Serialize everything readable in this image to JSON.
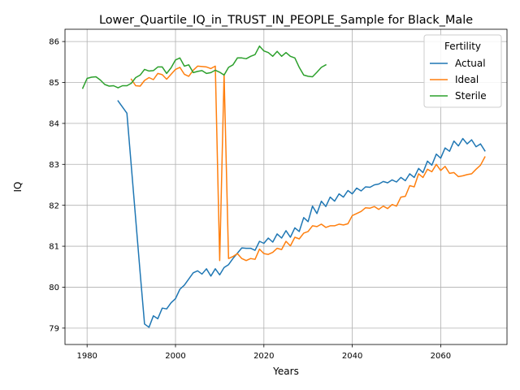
{
  "chart_data": {
    "type": "line",
    "title": "Lower_Quartile_IQ_in_TRUST_IN_PEOPLE_Sample for Black_Male",
    "xlabel": "Years",
    "ylabel": "IQ",
    "xlim": [
      1975,
      2075
    ],
    "ylim": [
      78.6,
      86.3
    ],
    "xticks": [
      1980,
      2000,
      2020,
      2040,
      2060
    ],
    "yticks": [
      79,
      80,
      81,
      82,
      83,
      84,
      85,
      86
    ],
    "grid": true,
    "legend": {
      "title": "Fertility",
      "placement": "top-right"
    },
    "series": [
      {
        "name": "Actual",
        "color": "#1f77b4",
        "x": [
          1987,
          1989,
          1992,
          1993,
          1994,
          1995,
          1996,
          1997,
          1998,
          1999,
          2000,
          2001,
          2002,
          2003,
          2004,
          2005,
          2006,
          2007,
          2008,
          2009,
          2010,
          2011,
          2012,
          2013,
          2014,
          2015,
          2016,
          2017,
          2018,
          2019,
          2020,
          2021,
          2022,
          2023,
          2024,
          2025,
          2026,
          2027,
          2028,
          2029,
          2030,
          2031,
          2032,
          2033,
          2034,
          2035,
          2036,
          2037,
          2038,
          2039,
          2040,
          2041,
          2042,
          2043,
          2044,
          2045,
          2046,
          2047,
          2048,
          2049,
          2050,
          2051,
          2052,
          2053,
          2054,
          2055,
          2056,
          2057,
          2058,
          2059,
          2060,
          2061,
          2062,
          2063,
          2064,
          2065,
          2066,
          2067,
          2068,
          2069,
          2070
        ],
        "values": [
          84.55,
          84.25,
          80.35,
          79.1,
          79.02,
          79.3,
          79.23,
          79.49,
          79.47,
          79.62,
          79.72,
          79.95,
          80.05,
          80.2,
          80.35,
          80.4,
          80.32,
          80.45,
          80.27,
          80.45,
          80.3,
          80.48,
          80.55,
          80.7,
          80.83,
          80.96,
          80.95,
          80.95,
          80.9,
          81.12,
          81.07,
          81.2,
          81.1,
          81.3,
          81.2,
          81.38,
          81.22,
          81.45,
          81.36,
          81.7,
          81.6,
          81.98,
          81.8,
          82.1,
          81.97,
          82.2,
          82.1,
          82.28,
          82.2,
          82.36,
          82.28,
          82.42,
          82.35,
          82.45,
          82.44,
          82.5,
          82.52,
          82.58,
          82.55,
          82.62,
          82.57,
          82.68,
          82.6,
          82.77,
          82.68,
          82.9,
          82.8,
          83.08,
          82.98,
          83.25,
          83.15,
          83.4,
          83.32,
          83.57,
          83.45,
          83.63,
          83.5,
          83.6,
          83.43,
          83.5,
          83.33
        ]
      },
      {
        "name": "Ideal",
        "color": "#ff7f0e",
        "x": [
          1990,
          1991,
          1992,
          1993,
          1994,
          1995,
          1996,
          1997,
          1998,
          1999,
          2000,
          2001,
          2002,
          2003,
          2004,
          2005,
          2006,
          2007,
          2008,
          2009,
          2010,
          2011,
          2012,
          2013,
          2014,
          2015,
          2016,
          2017,
          2018,
          2019,
          2020,
          2021,
          2022,
          2023,
          2024,
          2025,
          2026,
          2027,
          2028,
          2029,
          2030,
          2031,
          2032,
          2033,
          2034,
          2035,
          2036,
          2037,
          2038,
          2039,
          2040,
          2041,
          2042,
          2043,
          2044,
          2045,
          2046,
          2047,
          2048,
          2049,
          2050,
          2051,
          2052,
          2053,
          2054,
          2055,
          2056,
          2057,
          2058,
          2059,
          2060,
          2061,
          2062,
          2063,
          2064,
          2065,
          2066,
          2067,
          2068,
          2069,
          2070
        ],
        "values": [
          85.08,
          84.92,
          84.91,
          85.05,
          85.12,
          85.07,
          85.22,
          85.19,
          85.08,
          85.2,
          85.32,
          85.37,
          85.2,
          85.15,
          85.3,
          85.4,
          85.39,
          85.38,
          85.34,
          85.4,
          80.65,
          85.2,
          80.7,
          80.75,
          80.82,
          80.7,
          80.65,
          80.7,
          80.68,
          80.93,
          80.82,
          80.8,
          80.85,
          80.95,
          80.92,
          81.12,
          81.01,
          81.22,
          81.18,
          81.32,
          81.36,
          81.5,
          81.48,
          81.54,
          81.46,
          81.5,
          81.5,
          81.54,
          81.52,
          81.55,
          81.75,
          81.8,
          81.85,
          81.94,
          81.93,
          81.97,
          81.9,
          81.98,
          81.92,
          82.02,
          81.98,
          82.2,
          82.22,
          82.48,
          82.45,
          82.77,
          82.68,
          82.88,
          82.82,
          83.0,
          82.85,
          82.95,
          82.78,
          82.8,
          82.7,
          82.72,
          82.75,
          82.77,
          82.88,
          82.98,
          83.18
        ]
      },
      {
        "name": "Sterile",
        "color": "#2ca02c",
        "x": [
          1979,
          1980,
          1981,
          1982,
          1983,
          1984,
          1985,
          1986,
          1987,
          1988,
          1989,
          1990,
          1991,
          1992,
          1993,
          1994,
          1995,
          1996,
          1997,
          1998,
          1999,
          2000,
          2001,
          2002,
          2003,
          2004,
          2005,
          2006,
          2007,
          2008,
          2009,
          2010,
          2011,
          2012,
          2013,
          2014,
          2015,
          2016,
          2017,
          2018,
          2019,
          2020,
          2021,
          2022,
          2023,
          2024,
          2025,
          2026,
          2027,
          2028,
          2029,
          2030,
          2031,
          2032,
          2033,
          2034
        ],
        "values": [
          84.86,
          85.1,
          85.13,
          85.14,
          85.06,
          84.95,
          84.91,
          84.92,
          84.87,
          84.92,
          84.92,
          84.98,
          85.12,
          85.18,
          85.32,
          85.28,
          85.29,
          85.38,
          85.38,
          85.22,
          85.36,
          85.55,
          85.6,
          85.4,
          85.43,
          85.24,
          85.27,
          85.29,
          85.22,
          85.24,
          85.3,
          85.25,
          85.18,
          85.37,
          85.43,
          85.6,
          85.6,
          85.58,
          85.64,
          85.68,
          85.89,
          85.77,
          85.73,
          85.64,
          85.76,
          85.64,
          85.73,
          85.64,
          85.6,
          85.37,
          85.18,
          85.15,
          85.14,
          85.25,
          85.37,
          85.43
        ]
      }
    ]
  }
}
